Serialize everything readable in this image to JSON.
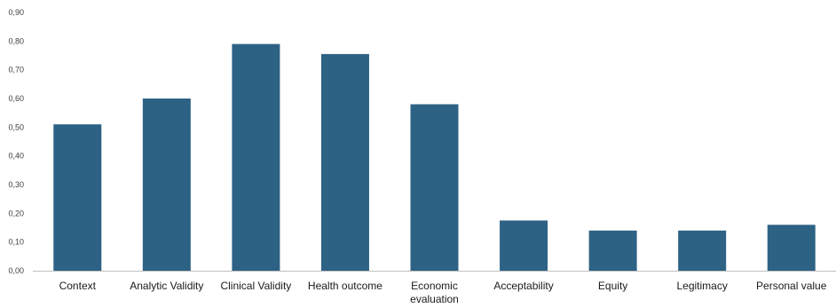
{
  "chart_data": {
    "type": "bar",
    "categories": [
      [
        "Context"
      ],
      [
        "Analytic Validity"
      ],
      [
        "Clinical Validity"
      ],
      [
        "Health outcome"
      ],
      [
        "Economic",
        "evaluation"
      ],
      [
        "Acceptability"
      ],
      [
        "Equity"
      ],
      [
        "Legitimacy"
      ],
      [
        "Personal value"
      ]
    ],
    "values": [
      0.51,
      0.6,
      0.79,
      0.755,
      0.58,
      0.175,
      0.14,
      0.14,
      0.16
    ],
    "ylim": [
      0,
      0.9
    ],
    "yticks": [
      "0,00",
      "0,10",
      "0,20",
      "0,30",
      "0,40",
      "0,50",
      "0,60",
      "0,70",
      "0,80",
      "0,90"
    ],
    "title": "",
    "xlabel": "",
    "ylabel": "",
    "bar_color": "#2E6285",
    "axis_color": "#C0C0C0",
    "grid": false,
    "legend": "none"
  }
}
